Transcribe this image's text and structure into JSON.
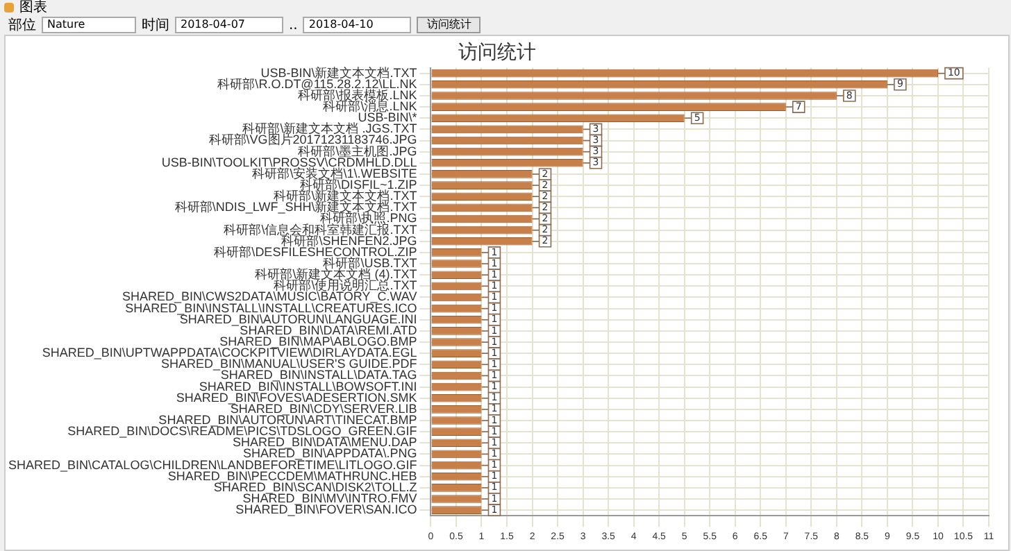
{
  "chart_data": {
    "type": "bar",
    "orientation": "horizontal",
    "title": "访问统计",
    "annotations": [
      "图表",
      "部位",
      "Nature",
      "时间",
      "2018-04-07",
      "..",
      "2018-04-10",
      "访问统计"
    ],
    "categories": [
      "USB-BIN\\新建文本文档.TXT",
      "科研部\\R.O.DT@115.28.2.12\\LL.NK",
      "科研部\\报表模板.LNK",
      "科研部\\消息.LNK",
      "USB-BIN\\*",
      "科研部\\新建文本文档 .JGS.TXT",
      "科研部\\VG图片20171231183746.JPG",
      "科研部\\墨主机图.JPG",
      "USB-BIN\\TOOLKIT\\PROSSV\\CRDMHLD.DLL",
      "科研部\\安装文档\\1\\.WEBSITE",
      "科研部\\DISFIL~1.ZIP",
      "科研部\\新建文本文档.TXT",
      "科研部\\NDIS_LWF_SHH\\新建文本文档.TXT",
      "科研部\\执照.PNG",
      "科研部\\信息会和科室韩建汇报.TXT",
      "科研部\\SHENFEN2.JPG",
      "科研部\\DESFILESHECONTROL.ZIP",
      "科研部\\USB.TXT",
      "科研部\\新建文本文档 (4).TXT",
      "科研部\\使用说明汇总.TXT",
      "SHARED_BIN\\CWS2DATA\\MUSIC\\BATORY_C.WAV",
      "SHARED_BIN\\INSTALL\\INSTALL\\CREATURES.ICO",
      "SHARED_BIN\\AUTORUN\\LANGUAGE.INI",
      "SHARED_BIN\\DATA\\REMI.ATD",
      "SHARED_BIN\\MAP\\ABLOGO.BMP",
      "SHARED_BIN\\UPTWAPPDATA\\COCKPITVIEW\\DIRLAYDATA.EGL",
      "SHARED_BIN\\MANUAL\\USER'S GUIDE.PDF",
      "SHARED_BIN\\INSTALL\\DATA.TAG",
      "SHARED_BIN\\INSTALL\\BOWSOFT.INI",
      "SHARED_BIN\\FOVES\\ADESERTION.SMK",
      "SHARED_BIN\\CDY\\SERVER.LIB",
      "SHARED_BIN\\AUTORUN\\ART\\TINECAT.BMP",
      "SHARED_BIN\\DOCS\\README\\PICS\\TDSLOGO_GREEN.GIF",
      "SHARED_BIN\\DATA\\MENU.DAP",
      "SHARED_BIN\\APPDATA\\.PNG",
      "SHARED_BIN\\CATALOG\\CHILDREN\\LANDBEFORETIME\\LITLOGO.GIF",
      "SHARED_BIN\\PECCDEM\\MATHRUNC.HEB",
      "SHARED_BIN\\SCAN\\DISK2\\TOLL.Z",
      "SHARED_BIN\\MV\\INTRO.FMV",
      "SHARED_BIN\\FOVER\\SAN.ICO"
    ],
    "values": [
      10,
      9,
      8,
      7,
      5,
      3,
      3,
      3,
      3,
      2,
      2,
      2,
      2,
      2,
      2,
      2,
      1,
      1,
      1,
      1,
      1,
      1,
      1,
      1,
      1,
      1,
      1,
      1,
      1,
      1,
      1,
      1,
      1,
      1,
      1,
      1,
      1,
      1,
      1,
      1
    ],
    "color": "#c8804a",
    "data_labels": true,
    "grid": true,
    "legend": false,
    "xlim": [
      0,
      11
    ],
    "xticks": [
      0,
      0.5,
      1,
      1.5,
      2,
      2.5,
      3,
      3.5,
      4,
      4.5,
      5,
      5.5,
      6,
      6.5,
      7,
      7.5,
      8,
      8.5,
      9,
      9.5,
      10,
      10.5,
      11
    ]
  }
}
